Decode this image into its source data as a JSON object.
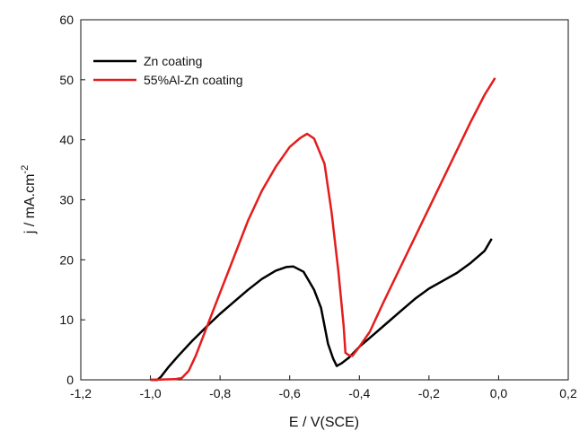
{
  "chart_data": {
    "type": "line",
    "title": "",
    "xlabel": "E / V(SCE)",
    "ylabel_main": "j / mA.cm",
    "ylabel_sup": "-2",
    "xlim": [
      -1.2,
      0.2
    ],
    "ylim": [
      0,
      60
    ],
    "xticks": [
      -1.2,
      -1.0,
      -0.8,
      -0.6,
      -0.4,
      -0.2,
      0.0,
      0.2
    ],
    "xtick_labels": [
      "-1,2",
      "-1,0",
      "-0,8",
      "-0,6",
      "-0,4",
      "-0,2",
      "0,0",
      "0,2"
    ],
    "yticks": [
      0,
      10,
      20,
      30,
      40,
      50,
      60
    ],
    "ytick_labels": [
      "0",
      "10",
      "20",
      "30",
      "40",
      "50",
      "60"
    ],
    "grid": false,
    "legend_position": "top-left",
    "series": [
      {
        "name": "Zn coating",
        "color": "#000000",
        "points": [
          [
            -1.0,
            0.0
          ],
          [
            -0.98,
            0.0
          ],
          [
            -0.97,
            0.5
          ],
          [
            -0.95,
            2.0
          ],
          [
            -0.92,
            4.0
          ],
          [
            -0.88,
            6.5
          ],
          [
            -0.84,
            8.8
          ],
          [
            -0.8,
            11.0
          ],
          [
            -0.76,
            13.0
          ],
          [
            -0.72,
            15.0
          ],
          [
            -0.68,
            16.8
          ],
          [
            -0.64,
            18.2
          ],
          [
            -0.61,
            18.8
          ],
          [
            -0.59,
            18.9
          ],
          [
            -0.56,
            18.0
          ],
          [
            -0.53,
            15.0
          ],
          [
            -0.51,
            12.0
          ],
          [
            -0.49,
            6.0
          ],
          [
            -0.475,
            3.5
          ],
          [
            -0.465,
            2.3
          ],
          [
            -0.45,
            2.8
          ],
          [
            -0.43,
            3.7
          ],
          [
            -0.4,
            5.5
          ],
          [
            -0.36,
            7.5
          ],
          [
            -0.32,
            9.5
          ],
          [
            -0.28,
            11.5
          ],
          [
            -0.24,
            13.5
          ],
          [
            -0.2,
            15.2
          ],
          [
            -0.16,
            16.5
          ],
          [
            -0.12,
            17.8
          ],
          [
            -0.08,
            19.5
          ],
          [
            -0.04,
            21.5
          ],
          [
            -0.02,
            23.5
          ]
        ]
      },
      {
        "name": "55%Al-Zn coating",
        "color": "#e41c1c",
        "points": [
          [
            -1.0,
            0.0
          ],
          [
            -0.93,
            0.1
          ],
          [
            -0.91,
            0.3
          ],
          [
            -0.89,
            1.5
          ],
          [
            -0.87,
            4.0
          ],
          [
            -0.84,
            8.5
          ],
          [
            -0.8,
            14.5
          ],
          [
            -0.76,
            20.5
          ],
          [
            -0.72,
            26.5
          ],
          [
            -0.68,
            31.5
          ],
          [
            -0.64,
            35.5
          ],
          [
            -0.6,
            38.8
          ],
          [
            -0.57,
            40.3
          ],
          [
            -0.55,
            41.0
          ],
          [
            -0.53,
            40.2
          ],
          [
            -0.5,
            36.0
          ],
          [
            -0.48,
            28.0
          ],
          [
            -0.46,
            18.0
          ],
          [
            -0.445,
            9.0
          ],
          [
            -0.44,
            4.5
          ],
          [
            -0.43,
            4.1
          ],
          [
            -0.42,
            4.0
          ],
          [
            -0.4,
            5.5
          ],
          [
            -0.37,
            8.0
          ],
          [
            -0.33,
            13.0
          ],
          [
            -0.28,
            19.0
          ],
          [
            -0.23,
            25.0
          ],
          [
            -0.18,
            31.0
          ],
          [
            -0.13,
            37.0
          ],
          [
            -0.08,
            43.0
          ],
          [
            -0.04,
            47.5
          ],
          [
            -0.01,
            50.3
          ]
        ]
      }
    ]
  }
}
